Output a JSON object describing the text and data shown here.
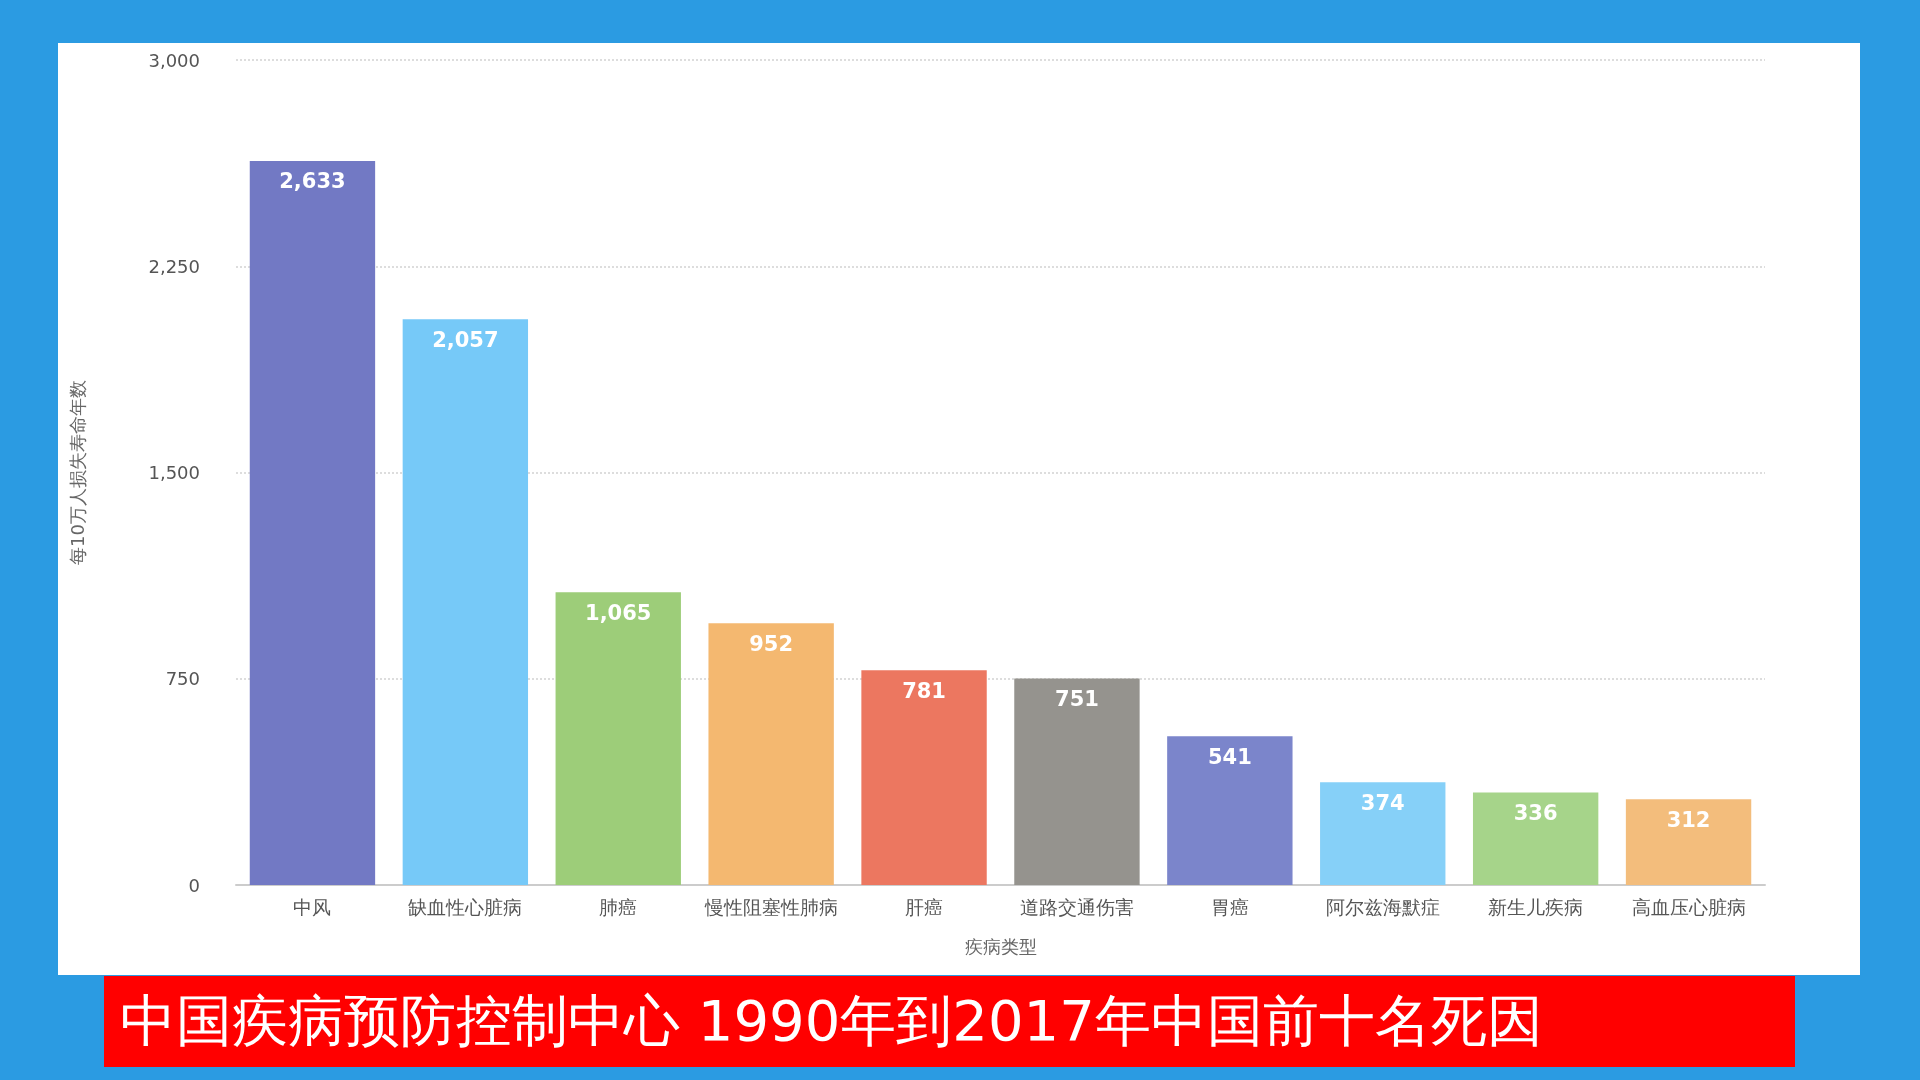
{
  "chart_data": {
    "type": "bar",
    "title": "中国疾病预防控制中心 1990年到2017年中国前十名死因",
    "xlabel": "疾病类型",
    "ylabel": "每10万人损失寿命年数",
    "categories": [
      "中风",
      "缺血性心脏病",
      "肺癌",
      "慢性阻塞性肺病",
      "肝癌",
      "道路交通伤害",
      "胃癌",
      "阿尔兹海默症",
      "新生儿疾病",
      "高血压心脏病"
    ],
    "values": [
      2633,
      2057,
      1065,
      952,
      781,
      751,
      541,
      374,
      336,
      312
    ],
    "value_labels": [
      "2,633",
      "2,057",
      "1,065",
      "952",
      "781",
      "751",
      "541",
      "374",
      "336",
      "312"
    ],
    "colors": [
      "#7279c4",
      "#76c9f8",
      "#9dcd79",
      "#f4b870",
      "#ec7760",
      "#95938e",
      "#7b85cb",
      "#86d0f8",
      "#a6d48a",
      "#f3bd7c"
    ],
    "ylim": [
      0,
      3000
    ],
    "yticks": [
      0,
      750,
      {
        "value": 1500,
        "label": "1,500"
      },
      {
        "value": 2250,
        "label": "2,250"
      },
      {
        "value": 3000,
        "label": "3,000"
      }
    ],
    "grid": "y"
  }
}
